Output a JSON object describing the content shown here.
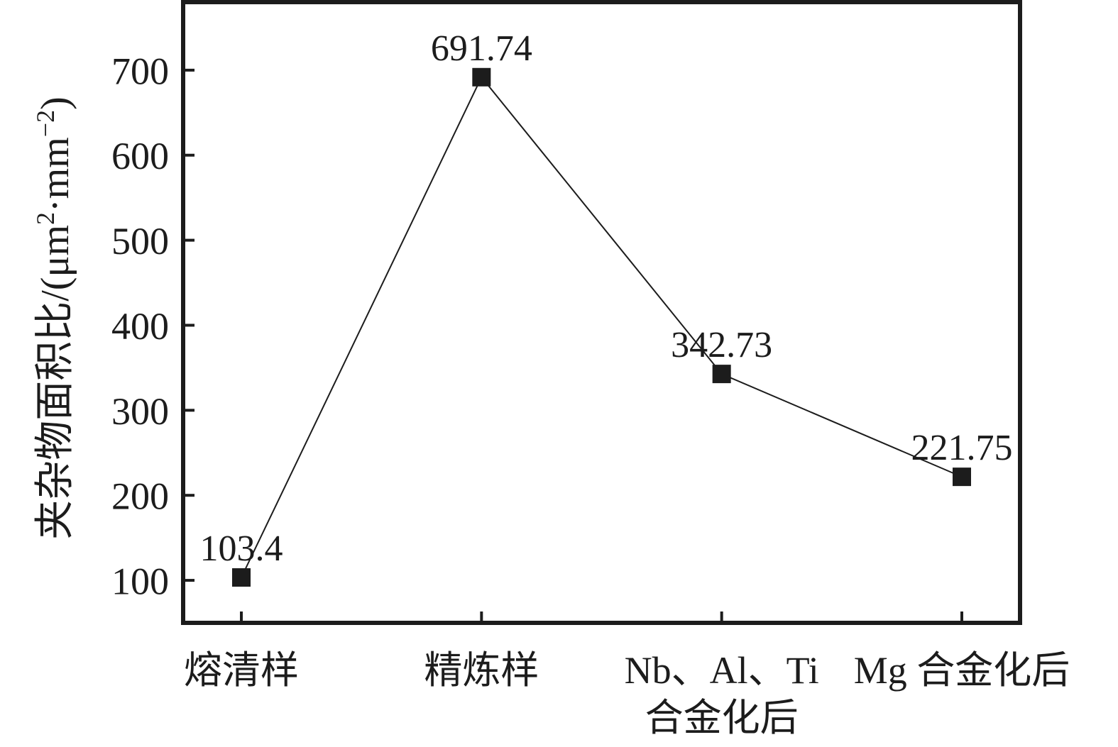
{
  "chart_data": {
    "type": "line",
    "title": "",
    "xlabel": "",
    "ylabel": "夹杂物面积比/(μm²·mm⁻²)",
    "ylabel_parts": [
      {
        "t": "夹杂物面积比/(μm",
        "sup": false
      },
      {
        "t": "2",
        "sup": true
      },
      {
        "t": "·mm",
        "sup": false
      },
      {
        "t": "−2",
        "sup": true
      },
      {
        "t": ")",
        "sup": false
      }
    ],
    "categories": [
      "熔清样",
      "精炼样",
      "Nb、Al、Ti 合金化后",
      "Mg 合金化后"
    ],
    "x_tick_labels": [
      [
        "熔清样"
      ],
      [
        "精炼样"
      ],
      [
        "Nb、Al、Ti",
        "合金化后"
      ],
      [
        "Mg 合金化后"
      ]
    ],
    "values": [
      103.4,
      691.74,
      342.73,
      221.75
    ],
    "point_labels": [
      "103.4",
      "691.74",
      "342.73",
      "221.75"
    ],
    "y_ticks": [
      100,
      200,
      300,
      400,
      500,
      600,
      700
    ],
    "ylim": [
      50,
      780
    ],
    "grid": false,
    "legend": false,
    "marker": "filled-square",
    "colors": {
      "line": "#1c1c1c",
      "marker": "#1c1c1c",
      "axis": "#1c1c1c",
      "text": "#1c1c1c",
      "background": "#ffffff"
    }
  }
}
